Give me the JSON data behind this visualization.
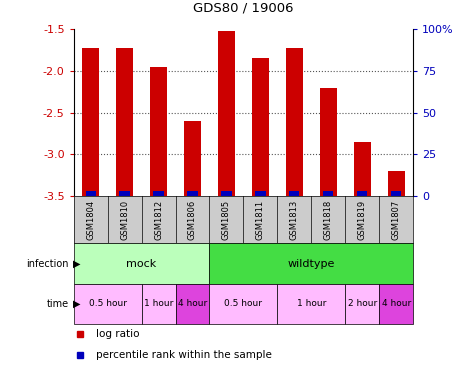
{
  "title": "GDS80 / 19006",
  "samples": [
    "GSM1804",
    "GSM1810",
    "GSM1812",
    "GSM1806",
    "GSM1805",
    "GSM1811",
    "GSM1813",
    "GSM1818",
    "GSM1819",
    "GSM1807"
  ],
  "log_ratios": [
    -1.72,
    -1.72,
    -1.95,
    -2.6,
    -1.52,
    -1.85,
    -1.72,
    -2.2,
    -2.85,
    -3.2
  ],
  "percentile_ranks": [
    3,
    3,
    3,
    3,
    5,
    3,
    3,
    3,
    3,
    3
  ],
  "ylim": [
    -3.5,
    -1.5
  ],
  "yticks": [
    -3.5,
    -3.0,
    -2.5,
    -2.0,
    -1.5
  ],
  "y2ticks": [
    0,
    25,
    50,
    75,
    100
  ],
  "y2labels": [
    "0",
    "25",
    "50",
    "75",
    "100%"
  ],
  "bar_color": "#cc0000",
  "blue_color": "#0000bb",
  "infection_groups": [
    {
      "label": "mock",
      "start": 0,
      "end": 4,
      "color": "#bbffbb"
    },
    {
      "label": "wildtype",
      "start": 4,
      "end": 10,
      "color": "#44dd44"
    }
  ],
  "time_groups": [
    {
      "label": "0.5 hour",
      "start": 0,
      "end": 2,
      "color": "#ffbbff"
    },
    {
      "label": "1 hour",
      "start": 2,
      "end": 3,
      "color": "#ffbbff"
    },
    {
      "label": "4 hour",
      "start": 3,
      "end": 4,
      "color": "#dd44dd"
    },
    {
      "label": "0.5 hour",
      "start": 4,
      "end": 6,
      "color": "#ffbbff"
    },
    {
      "label": "1 hour",
      "start": 6,
      "end": 8,
      "color": "#ffbbff"
    },
    {
      "label": "2 hour",
      "start": 8,
      "end": 9,
      "color": "#ffbbff"
    },
    {
      "label": "4 hour",
      "start": 9,
      "end": 10,
      "color": "#dd44dd"
    }
  ],
  "bar_width": 0.5,
  "blue_bar_width": 0.3,
  "axis_label_color": "#cc0000",
  "right_axis_color": "#0000bb",
  "grid_color": "#555555",
  "sample_box_color": "#cccccc",
  "background_color": "#ffffff"
}
